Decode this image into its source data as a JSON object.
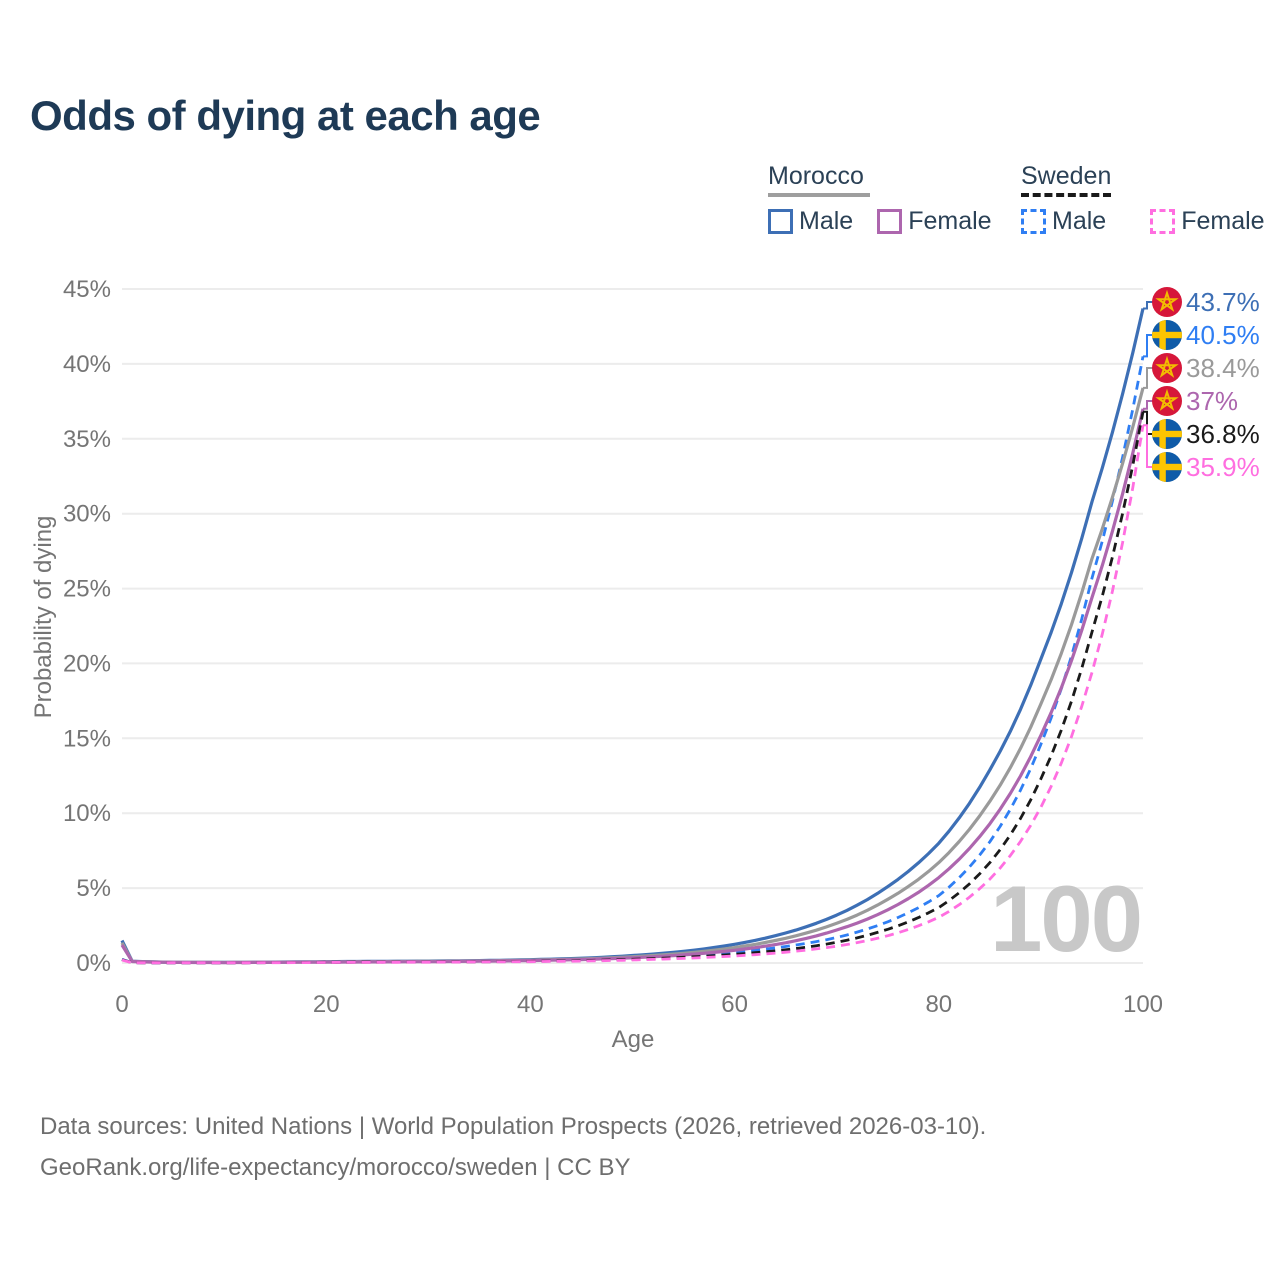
{
  "title": "Odds of dying at each age",
  "legend": {
    "groups": [
      {
        "name": "Morocco",
        "line_style": "solid",
        "line_color": "#9E9E9E",
        "items": [
          {
            "label": "Male",
            "color": "#3D6FB5"
          },
          {
            "label": "Female",
            "color": "#AD66AE"
          }
        ]
      },
      {
        "name": "Sweden",
        "line_style": "dashed",
        "line_color": "#1A1A1A",
        "items": [
          {
            "label": "Male",
            "color": "#2F7EF3"
          },
          {
            "label": "Female",
            "color": "#FF6EE0"
          }
        ]
      }
    ]
  },
  "chart_data": {
    "type": "line",
    "title": "Odds of dying at each age",
    "xlabel": "Age",
    "ylabel": "Probability of dying",
    "xlim": [
      0,
      100
    ],
    "ylim": [
      0,
      45
    ],
    "x_ticks": [
      0,
      20,
      40,
      60,
      80,
      100
    ],
    "y_ticks_pct": [
      0,
      5,
      10,
      15,
      20,
      25,
      30,
      35,
      40,
      45
    ],
    "grid": "horizontal",
    "legend_position": "top-right",
    "age_indicator": "100",
    "anchor_ages": [
      0,
      1,
      5,
      10,
      15,
      20,
      25,
      30,
      35,
      40,
      45,
      50,
      55,
      60,
      65,
      70,
      75,
      80,
      85,
      90,
      95,
      100
    ],
    "series": [
      {
        "name": "Morocco Male",
        "country": "Morocco",
        "group": "Male",
        "style": "solid",
        "color": "#3D6FB5",
        "end_label": "43.7%",
        "values": [
          1.5,
          0.12,
          0.05,
          0.04,
          0.06,
          0.09,
          0.11,
          0.13,
          0.16,
          0.22,
          0.32,
          0.5,
          0.78,
          1.25,
          2.0,
          3.2,
          5.1,
          8.0,
          12.9,
          20.3,
          30.8,
          43.7
        ]
      },
      {
        "name": "Sweden Male",
        "country": "Sweden",
        "group": "Male",
        "style": "dashed",
        "color": "#2F7EF3",
        "end_label": "40.5%",
        "values": [
          0.25,
          0.02,
          0.01,
          0.012,
          0.03,
          0.06,
          0.07,
          0.08,
          0.1,
          0.13,
          0.2,
          0.31,
          0.47,
          0.72,
          1.1,
          1.7,
          2.75,
          4.5,
          8.1,
          14.6,
          25.7,
          40.5
        ]
      },
      {
        "name": "Morocco",
        "country": "Morocco",
        "group": "All",
        "style": "solid",
        "color": "#9A9A9A",
        "end_label": "38.4%",
        "values": [
          1.35,
          0.11,
          0.045,
          0.035,
          0.05,
          0.075,
          0.09,
          0.11,
          0.14,
          0.19,
          0.27,
          0.42,
          0.65,
          1.03,
          1.65,
          2.65,
          4.25,
          6.7,
          10.8,
          17.3,
          27.0,
          38.4
        ]
      },
      {
        "name": "Morocco Female",
        "country": "Morocco",
        "group": "Female",
        "style": "solid",
        "color": "#AD66AE",
        "end_label": "37%",
        "values": [
          1.2,
          0.1,
          0.04,
          0.03,
          0.045,
          0.06,
          0.075,
          0.09,
          0.12,
          0.16,
          0.23,
          0.35,
          0.54,
          0.85,
          1.35,
          2.2,
          3.55,
          5.7,
          9.3,
          15.2,
          24.4,
          37.0
        ]
      },
      {
        "name": "Sweden",
        "country": "Sweden",
        "group": "All",
        "style": "dashed",
        "color": "#1A1A1A",
        "end_label": "36.8%",
        "values": [
          0.22,
          0.018,
          0.009,
          0.01,
          0.025,
          0.045,
          0.055,
          0.065,
          0.08,
          0.11,
          0.16,
          0.25,
          0.38,
          0.58,
          0.88,
          1.38,
          2.25,
          3.7,
          6.7,
          12.3,
          22.1,
          36.8
        ]
      },
      {
        "name": "Sweden Female",
        "country": "Sweden",
        "group": "Female",
        "style": "dashed",
        "color": "#FF6EE0",
        "end_label": "35.9%",
        "values": [
          0.2,
          0.016,
          0.008,
          0.009,
          0.02,
          0.035,
          0.045,
          0.055,
          0.067,
          0.09,
          0.13,
          0.2,
          0.31,
          0.47,
          0.72,
          1.12,
          1.82,
          3.05,
          5.6,
          10.4,
          19.4,
          35.9
        ]
      }
    ],
    "flags": {
      "morocco": {
        "base": "#D6173A",
        "emblem": "#F2BC00"
      },
      "sweden": {
        "base": "#0F5BA8",
        "cross": "#FDC500"
      }
    },
    "colors": {
      "gridline": "#ECECEC",
      "tick_text": "#757575",
      "watermark": "#C8C8C8"
    }
  },
  "footer": {
    "line1": "Data sources: United Nations | World Population Prospects (2026, retrieved 2026-03-10).",
    "line2": "GeoRank.org/life-expectancy/morocco/sweden | CC BY"
  }
}
